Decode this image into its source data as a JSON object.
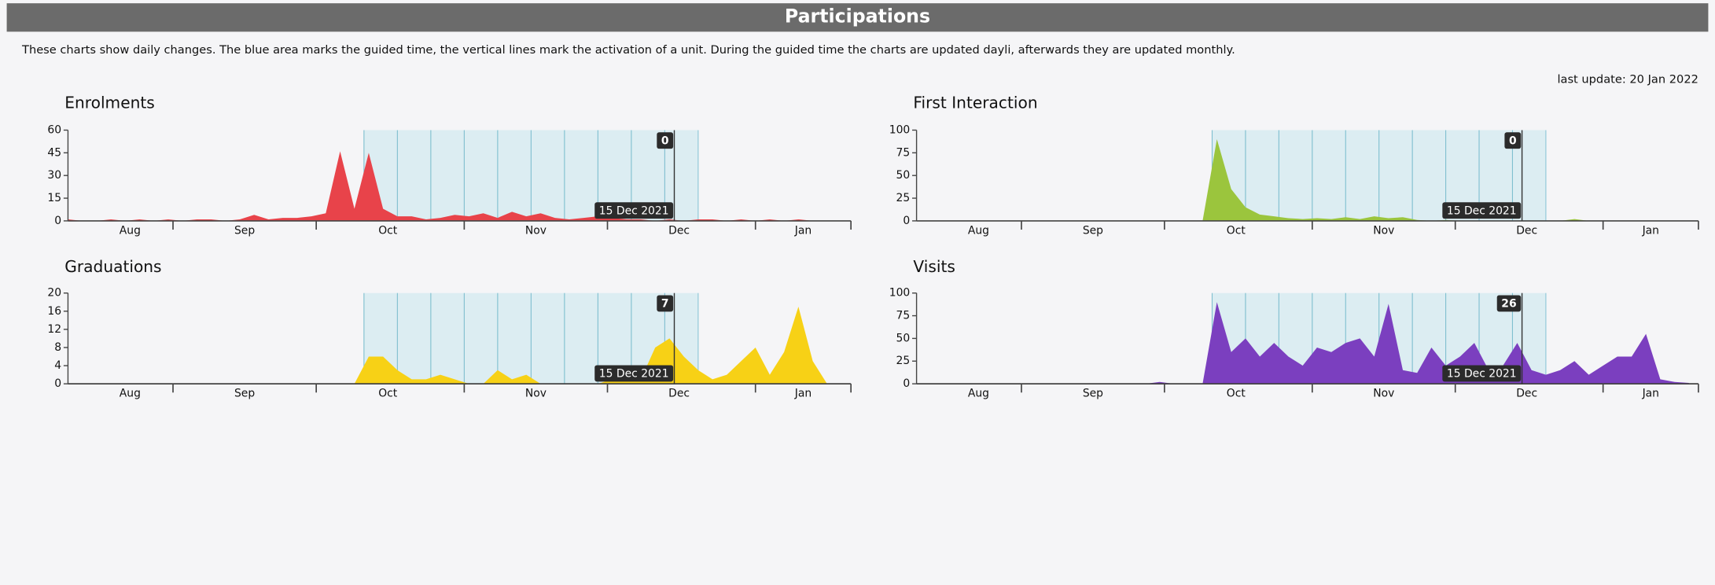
{
  "header": {
    "title": "Participations"
  },
  "description": "These charts show daily changes. The blue area marks the guided time, the vertical lines mark the activation of a unit. During the guided time the charts are updated dayli, afterwards they are updated monthly.",
  "last_update": "last update: 20 Jan 2022",
  "chart_data": [
    {
      "type": "area",
      "title": "Enrolments",
      "color": "#e8434a",
      "x": [
        "2021-08-10",
        "2021-08-13",
        "2021-08-16",
        "2021-08-19",
        "2021-08-22",
        "2021-08-25",
        "2021-08-28",
        "2021-08-31",
        "2021-09-03",
        "2021-09-06",
        "2021-09-09",
        "2021-09-12",
        "2021-09-15",
        "2021-09-18",
        "2021-09-21",
        "2021-09-24",
        "2021-09-27",
        "2021-09-30",
        "2021-10-03",
        "2021-10-06",
        "2021-10-09",
        "2021-10-12",
        "2021-10-15",
        "2021-10-18",
        "2021-10-21",
        "2021-10-24",
        "2021-10-27",
        "2021-10-30",
        "2021-11-02",
        "2021-11-05",
        "2021-11-08",
        "2021-11-11",
        "2021-11-14",
        "2021-11-17",
        "2021-11-20",
        "2021-11-23",
        "2021-11-26",
        "2021-11-29",
        "2021-12-02",
        "2021-12-05",
        "2021-12-08",
        "2021-12-11",
        "2021-12-14",
        "2021-12-17",
        "2021-12-20",
        "2021-12-23",
        "2021-12-26",
        "2021-12-29",
        "2022-01-01",
        "2022-01-04",
        "2022-01-07",
        "2022-01-10",
        "2022-01-13",
        "2022-01-16",
        "2022-01-19"
      ],
      "values": [
        1,
        0,
        0,
        1,
        0,
        1,
        0,
        1,
        0,
        1,
        1,
        0,
        1,
        4,
        1,
        2,
        2,
        3,
        5,
        46,
        8,
        45,
        8,
        3,
        3,
        1,
        2,
        4,
        3,
        5,
        2,
        6,
        3,
        5,
        2,
        1,
        2,
        3,
        2,
        1,
        1,
        0,
        1,
        0,
        1,
        1,
        0,
        1,
        0,
        1,
        0,
        1,
        0,
        0,
        0
      ],
      "xlim": [
        "2021-08-10",
        "2022-01-21"
      ],
      "xticks": [
        {
          "value": "2021-08-23",
          "label": "Aug"
        },
        {
          "value": "2021-09-16",
          "label": "Sep"
        },
        {
          "value": "2021-10-16",
          "label": "Oct"
        },
        {
          "value": "2021-11-16",
          "label": "Nov"
        },
        {
          "value": "2021-12-16",
          "label": "Dec"
        },
        {
          "value": "2022-01-11",
          "label": "Jan"
        }
      ],
      "ylim": [
        0,
        60
      ],
      "yticks": [
        0,
        15,
        30,
        45,
        60
      ],
      "guided_time": [
        "2021-10-11",
        "2021-12-20"
      ],
      "unit_activations": [
        "2021-10-11",
        "2021-10-18",
        "2021-10-25",
        "2021-11-01",
        "2021-11-08",
        "2021-11-15",
        "2021-11-22",
        "2021-11-29",
        "2021-12-06",
        "2021-12-13"
      ],
      "hover": {
        "date": "2021-12-15",
        "date_label": "15 Dec 2021",
        "value": 0
      }
    },
    {
      "type": "area",
      "title": "First Interaction",
      "color": "#9bc53d",
      "x": [
        "2021-08-10",
        "2021-08-13",
        "2021-08-16",
        "2021-08-19",
        "2021-08-22",
        "2021-08-25",
        "2021-08-28",
        "2021-08-31",
        "2021-09-03",
        "2021-09-06",
        "2021-09-09",
        "2021-09-12",
        "2021-09-15",
        "2021-09-18",
        "2021-09-21",
        "2021-09-24",
        "2021-09-27",
        "2021-09-30",
        "2021-10-03",
        "2021-10-06",
        "2021-10-09",
        "2021-10-12",
        "2021-10-15",
        "2021-10-18",
        "2021-10-21",
        "2021-10-24",
        "2021-10-27",
        "2021-10-30",
        "2021-11-02",
        "2021-11-05",
        "2021-11-08",
        "2021-11-11",
        "2021-11-14",
        "2021-11-17",
        "2021-11-20",
        "2021-11-23",
        "2021-11-26",
        "2021-11-29",
        "2021-12-02",
        "2021-12-05",
        "2021-12-08",
        "2021-12-11",
        "2021-12-14",
        "2021-12-17",
        "2021-12-20",
        "2021-12-23",
        "2021-12-26",
        "2021-12-29",
        "2022-01-01",
        "2022-01-04",
        "2022-01-07",
        "2022-01-10",
        "2022-01-13",
        "2022-01-16",
        "2022-01-19"
      ],
      "values": [
        0,
        0,
        0,
        0,
        0,
        0,
        0,
        0,
        0,
        0,
        0,
        0,
        0,
        0,
        0,
        0,
        0,
        0,
        0,
        0,
        0,
        90,
        35,
        15,
        7,
        5,
        3,
        2,
        3,
        2,
        4,
        2,
        5,
        3,
        4,
        1,
        0,
        1,
        0,
        0,
        0,
        0,
        0,
        0,
        0,
        0,
        2,
        0,
        0,
        0,
        0,
        0,
        0,
        0,
        0
      ],
      "xlim": [
        "2021-08-10",
        "2022-01-21"
      ],
      "xticks": [
        {
          "value": "2021-08-23",
          "label": "Aug"
        },
        {
          "value": "2021-09-16",
          "label": "Sep"
        },
        {
          "value": "2021-10-16",
          "label": "Oct"
        },
        {
          "value": "2021-11-16",
          "label": "Nov"
        },
        {
          "value": "2021-12-16",
          "label": "Dec"
        },
        {
          "value": "2022-01-11",
          "label": "Jan"
        }
      ],
      "ylim": [
        0,
        100
      ],
      "yticks": [
        0,
        25,
        50,
        75,
        100
      ],
      "guided_time": [
        "2021-10-11",
        "2021-12-20"
      ],
      "unit_activations": [
        "2021-10-11",
        "2021-10-18",
        "2021-10-25",
        "2021-11-01",
        "2021-11-08",
        "2021-11-15",
        "2021-11-22",
        "2021-11-29",
        "2021-12-06",
        "2021-12-13"
      ],
      "hover": {
        "date": "2021-12-15",
        "date_label": "15 Dec 2021",
        "value": 0
      }
    },
    {
      "type": "area",
      "title": "Graduations",
      "color": "#f7d116",
      "x": [
        "2021-08-10",
        "2021-08-13",
        "2021-08-16",
        "2021-08-19",
        "2021-08-22",
        "2021-08-25",
        "2021-08-28",
        "2021-08-31",
        "2021-09-03",
        "2021-09-06",
        "2021-09-09",
        "2021-09-12",
        "2021-09-15",
        "2021-09-18",
        "2021-09-21",
        "2021-09-24",
        "2021-09-27",
        "2021-09-30",
        "2021-10-03",
        "2021-10-06",
        "2021-10-09",
        "2021-10-12",
        "2021-10-15",
        "2021-10-18",
        "2021-10-21",
        "2021-10-24",
        "2021-10-27",
        "2021-10-30",
        "2021-11-02",
        "2021-11-05",
        "2021-11-08",
        "2021-11-11",
        "2021-11-14",
        "2021-11-17",
        "2021-11-20",
        "2021-11-23",
        "2021-11-26",
        "2021-11-29",
        "2021-12-02",
        "2021-12-05",
        "2021-12-08",
        "2021-12-11",
        "2021-12-14",
        "2021-12-17",
        "2021-12-20",
        "2021-12-23",
        "2021-12-26",
        "2021-12-29",
        "2022-01-01",
        "2022-01-04",
        "2022-01-07",
        "2022-01-10",
        "2022-01-13",
        "2022-01-16",
        "2022-01-19"
      ],
      "values": [
        0,
        0,
        0,
        0,
        0,
        0,
        0,
        0,
        0,
        0,
        0,
        0,
        0,
        0,
        0,
        0,
        0,
        0,
        0,
        0,
        0,
        6,
        6,
        3,
        1,
        1,
        2,
        1,
        0,
        0,
        3,
        1,
        2,
        0,
        0,
        0,
        0,
        0,
        1,
        3,
        1,
        8,
        10,
        6,
        3,
        1,
        2,
        5,
        8,
        2,
        7,
        17,
        5,
        0,
        0
      ],
      "xlim": [
        "2021-08-10",
        "2022-01-21"
      ],
      "xticks": [
        {
          "value": "2021-08-23",
          "label": "Aug"
        },
        {
          "value": "2021-09-16",
          "label": "Sep"
        },
        {
          "value": "2021-10-16",
          "label": "Oct"
        },
        {
          "value": "2021-11-16",
          "label": "Nov"
        },
        {
          "value": "2021-12-16",
          "label": "Dec"
        },
        {
          "value": "2022-01-11",
          "label": "Jan"
        }
      ],
      "ylim": [
        0,
        20
      ],
      "yticks": [
        0,
        4,
        8,
        12,
        16,
        20
      ],
      "guided_time": [
        "2021-10-11",
        "2021-12-20"
      ],
      "unit_activations": [
        "2021-10-11",
        "2021-10-18",
        "2021-10-25",
        "2021-11-01",
        "2021-11-08",
        "2021-11-15",
        "2021-11-22",
        "2021-11-29",
        "2021-12-06",
        "2021-12-13"
      ],
      "hover": {
        "date": "2021-12-15",
        "date_label": "15 Dec 2021",
        "value": 7
      }
    },
    {
      "type": "area",
      "title": "Visits",
      "color": "#7b3fbf",
      "x": [
        "2021-08-10",
        "2021-08-13",
        "2021-08-16",
        "2021-08-19",
        "2021-08-22",
        "2021-08-25",
        "2021-08-28",
        "2021-08-31",
        "2021-09-03",
        "2021-09-06",
        "2021-09-09",
        "2021-09-12",
        "2021-09-15",
        "2021-09-18",
        "2021-09-21",
        "2021-09-24",
        "2021-09-27",
        "2021-09-30",
        "2021-10-03",
        "2021-10-06",
        "2021-10-09",
        "2021-10-12",
        "2021-10-15",
        "2021-10-18",
        "2021-10-21",
        "2021-10-24",
        "2021-10-27",
        "2021-10-30",
        "2021-11-02",
        "2021-11-05",
        "2021-11-08",
        "2021-11-11",
        "2021-11-14",
        "2021-11-17",
        "2021-11-20",
        "2021-11-23",
        "2021-11-26",
        "2021-11-29",
        "2021-12-02",
        "2021-12-05",
        "2021-12-08",
        "2021-12-11",
        "2021-12-14",
        "2021-12-17",
        "2021-12-20",
        "2021-12-23",
        "2021-12-26",
        "2021-12-29",
        "2022-01-01",
        "2022-01-04",
        "2022-01-07",
        "2022-01-10",
        "2022-01-13",
        "2022-01-16",
        "2022-01-19"
      ],
      "values": [
        0,
        0,
        0,
        0,
        0,
        0,
        0,
        0,
        0,
        0,
        0,
        0,
        0,
        0,
        0,
        0,
        0,
        2,
        0,
        0,
        0,
        90,
        35,
        50,
        30,
        45,
        30,
        20,
        40,
        35,
        45,
        50,
        30,
        88,
        15,
        12,
        40,
        20,
        30,
        45,
        15,
        20,
        45,
        15,
        10,
        15,
        25,
        10,
        20,
        30,
        30,
        55,
        5,
        2,
        1
      ],
      "xlim": [
        "2021-08-10",
        "2022-01-21"
      ],
      "xticks": [
        {
          "value": "2021-08-23",
          "label": "Aug"
        },
        {
          "value": "2021-09-16",
          "label": "Sep"
        },
        {
          "value": "2021-10-16",
          "label": "Oct"
        },
        {
          "value": "2021-11-16",
          "label": "Nov"
        },
        {
          "value": "2021-12-16",
          "label": "Dec"
        },
        {
          "value": "2022-01-11",
          "label": "Jan"
        }
      ],
      "ylim": [
        0,
        100
      ],
      "yticks": [
        0,
        25,
        50,
        75,
        100
      ],
      "guided_time": [
        "2021-10-11",
        "2021-12-20"
      ],
      "unit_activations": [
        "2021-10-11",
        "2021-10-18",
        "2021-10-25",
        "2021-11-01",
        "2021-11-08",
        "2021-11-15",
        "2021-11-22",
        "2021-11-29",
        "2021-12-06",
        "2021-12-13"
      ],
      "hover": {
        "date": "2021-12-15",
        "date_label": "15 Dec 2021",
        "value": 26
      }
    }
  ]
}
